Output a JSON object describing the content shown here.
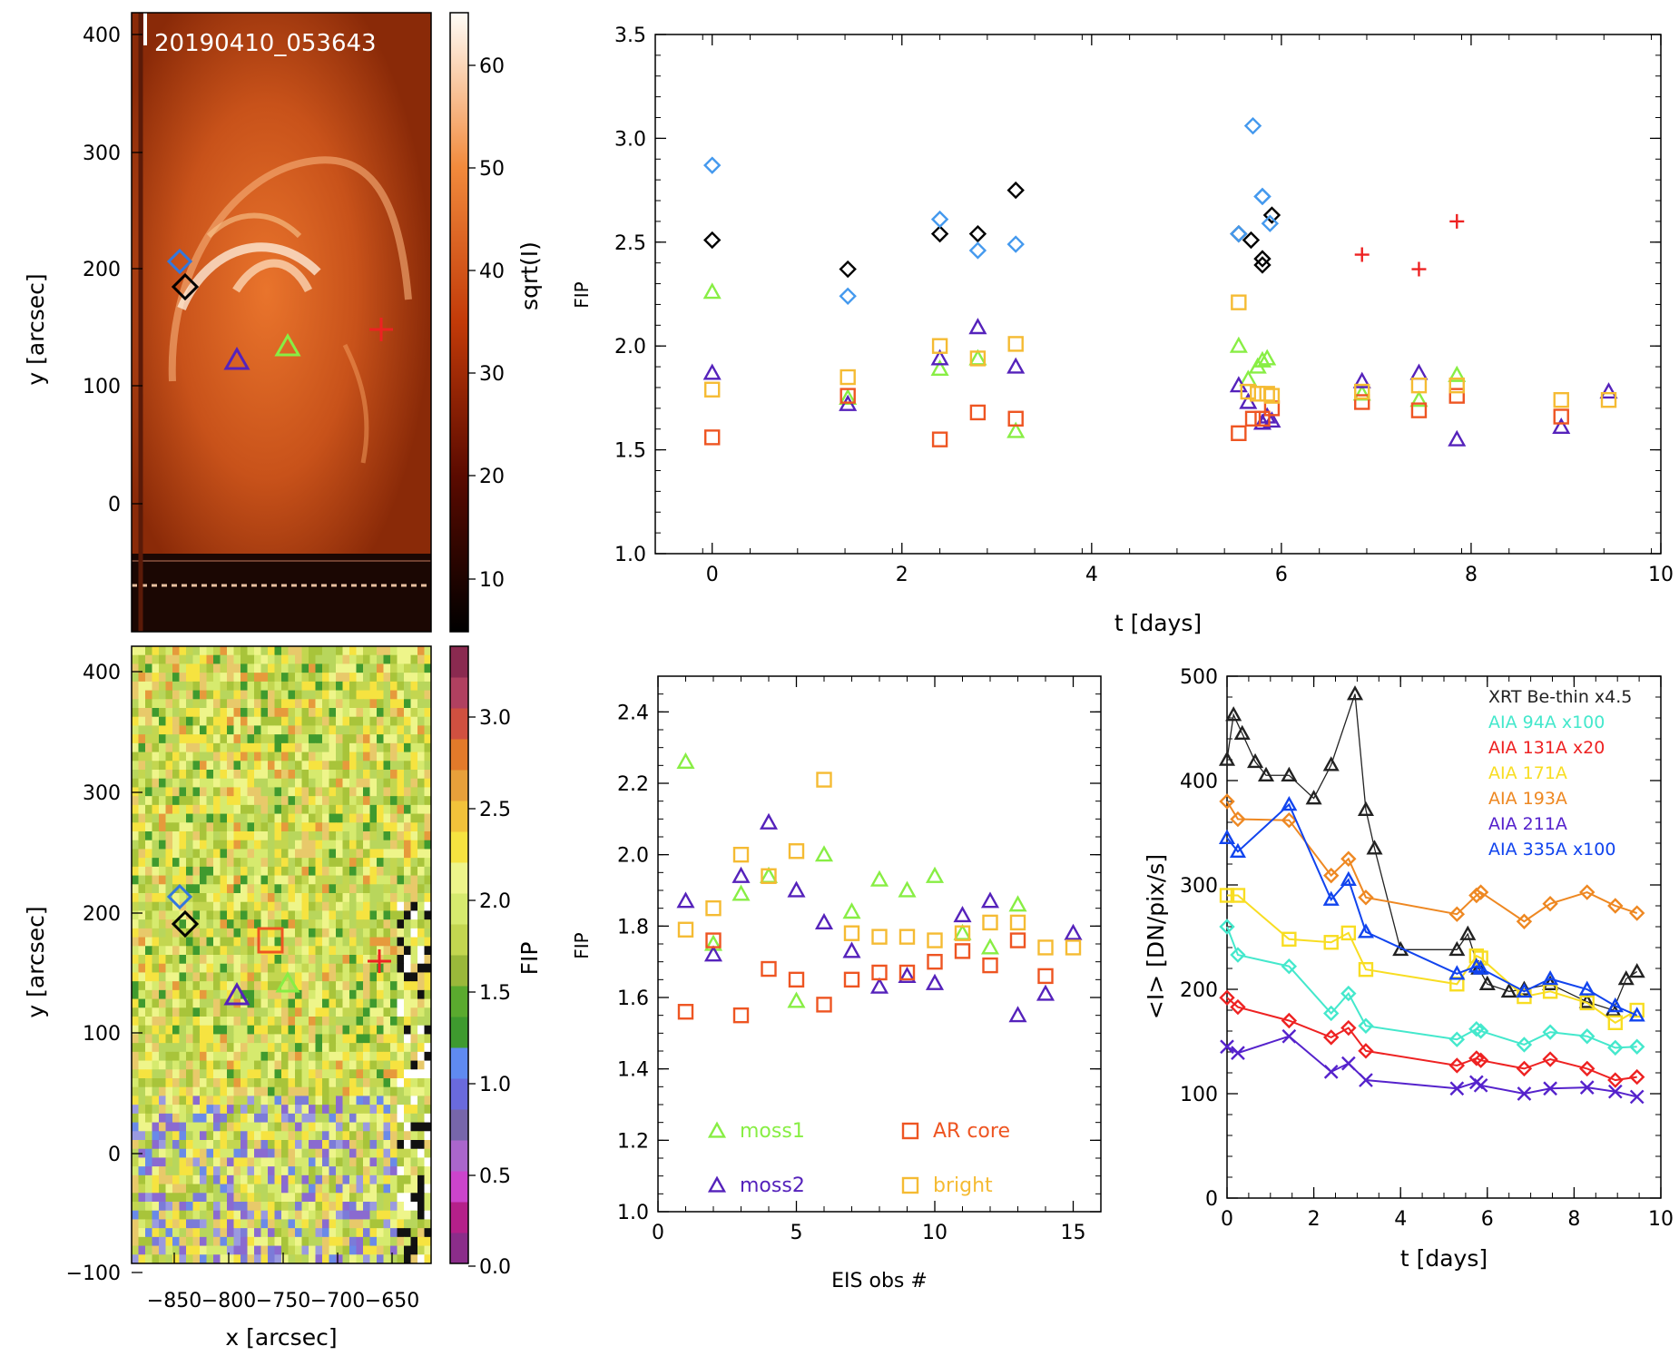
{
  "colors": {
    "moss1": "#88ee44",
    "moss2": "#5522bb",
    "arcore": "#ee5522",
    "bright": "#f5bb33",
    "black": "#000000",
    "lightblue": "#4499ee",
    "red": "#ee2222",
    "xrt": "#222222",
    "aia94": "#44e8cc",
    "aia131": "#ee2222",
    "aia171": "#f8dd22",
    "aia193": "#ee8822",
    "aia211": "#5522cc",
    "aia335": "#1144ee"
  },
  "image_panel": {
    "title": "20190410_053643",
    "ylabel": "y [arcsec]",
    "yticks": [
      "400",
      "300",
      "200",
      "100",
      "0"
    ],
    "colorbar_label": "sqrt(I)",
    "colorbar_ticks": [
      "60",
      "50",
      "40",
      "30",
      "20",
      "10"
    ]
  },
  "fip_panel": {
    "ylabel": "y [arcsec]",
    "xlabel": "x [arcsec]",
    "yticks": [
      "400",
      "300",
      "200",
      "100",
      "0",
      "−100"
    ],
    "xticks": [
      "−850",
      "−800",
      "−750",
      "−700",
      "−650"
    ],
    "colorbar_label": "FIP",
    "colorbar_ticks": [
      "3.0",
      "2.5",
      "2.0",
      "1.5",
      "1.0",
      "0.5",
      "0.0"
    ]
  },
  "chart_data": [
    {
      "type": "scatter",
      "title": "",
      "xlabel": "t [days]",
      "ylabel": "FIP",
      "xlim": [
        -0.6,
        10
      ],
      "ylim": [
        1.0,
        3.5
      ],
      "xticks": [
        "0",
        "2",
        "4",
        "6",
        "8",
        "10"
      ],
      "yticks": [
        "1.0",
        "1.5",
        "2.0",
        "2.5",
        "3.0",
        "3.5"
      ],
      "series": [
        {
          "name": "black diamonds",
          "marker": "diamond",
          "color": "black",
          "x": [
            0.0,
            1.43,
            2.4,
            2.8,
            3.2,
            5.55,
            5.68,
            5.8,
            5.8,
            5.9
          ],
          "y": [
            2.51,
            2.37,
            2.54,
            2.54,
            2.75,
            2.54,
            2.51,
            2.42,
            2.39,
            2.63
          ]
        },
        {
          "name": "light blue diamonds",
          "marker": "diamond",
          "color": "lightblue",
          "x": [
            0.0,
            1.43,
            2.4,
            2.8,
            3.2,
            5.55,
            5.7,
            5.8,
            5.8,
            5.88
          ],
          "y": [
            2.87,
            2.24,
            2.61,
            2.46,
            2.49,
            2.54,
            3.06,
            2.72,
            2.72,
            2.59
          ]
        },
        {
          "name": "red crosses",
          "marker": "plus",
          "color": "red",
          "x": [
            6.85,
            7.45,
            7.85
          ],
          "y": [
            2.44,
            2.37,
            2.6
          ]
        },
        {
          "name": "moss1",
          "marker": "triangle",
          "color": "moss1",
          "x": [
            0.0,
            1.43,
            2.4,
            2.8,
            3.2,
            5.55,
            5.65,
            5.75,
            5.8,
            5.85,
            6.85,
            7.45,
            7.85
          ],
          "y": [
            2.26,
            1.75,
            1.89,
            1.94,
            1.59,
            2.0,
            1.84,
            1.9,
            1.93,
            1.94,
            1.77,
            1.74,
            1.86
          ]
        },
        {
          "name": "moss2",
          "marker": "triangle",
          "color": "moss2",
          "x": [
            0.0,
            1.43,
            2.4,
            2.8,
            3.2,
            5.55,
            5.65,
            5.8,
            5.85,
            5.9,
            6.85,
            7.45,
            7.85,
            8.95,
            9.45
          ],
          "y": [
            1.87,
            1.72,
            1.94,
            2.09,
            1.9,
            1.81,
            1.73,
            1.63,
            1.66,
            1.64,
            1.83,
            1.87,
            1.55,
            1.61,
            1.78
          ]
        },
        {
          "name": "AR core",
          "marker": "square",
          "color": "arcore",
          "x": [
            0.0,
            1.43,
            2.4,
            2.8,
            3.2,
            5.55,
            5.7,
            5.8,
            5.9,
            6.85,
            7.45,
            7.85,
            8.95
          ],
          "y": [
            1.56,
            1.76,
            1.55,
            1.68,
            1.65,
            1.58,
            1.65,
            1.65,
            1.7,
            1.73,
            1.69,
            1.76,
            1.66
          ]
        },
        {
          "name": "bright",
          "marker": "square",
          "color": "bright",
          "x": [
            0.0,
            1.43,
            2.4,
            2.8,
            3.2,
            5.55,
            5.65,
            5.75,
            5.85,
            5.9,
            6.85,
            7.45,
            7.85,
            8.95,
            9.45
          ],
          "y": [
            1.79,
            1.85,
            2.0,
            1.94,
            2.01,
            2.21,
            1.78,
            1.77,
            1.77,
            1.76,
            1.78,
            1.81,
            1.81,
            1.74,
            1.74
          ]
        }
      ]
    },
    {
      "type": "scatter",
      "title": "",
      "xlabel": "EIS obs #",
      "ylabel": "FIP",
      "xlim": [
        0,
        16
      ],
      "ylim": [
        1.0,
        2.5
      ],
      "xticks": [
        "0",
        "5",
        "10",
        "15"
      ],
      "yticks": [
        "1.0",
        "1.2",
        "1.4",
        "1.6",
        "1.8",
        "2.0",
        "2.2",
        "2.4"
      ],
      "legend": [
        "moss1",
        "AR core",
        "moss2",
        "bright"
      ],
      "series": [
        {
          "name": "moss1",
          "marker": "triangle",
          "color": "moss1",
          "x": [
            1,
            2,
            3,
            4,
            5,
            6,
            7,
            8,
            9,
            10,
            11,
            12,
            13
          ],
          "y": [
            2.26,
            1.75,
            1.89,
            1.94,
            1.59,
            2.0,
            1.84,
            1.93,
            1.9,
            1.94,
            1.78,
            1.74,
            1.86
          ]
        },
        {
          "name": "moss2",
          "marker": "triangle",
          "color": "moss2",
          "x": [
            1,
            2,
            3,
            4,
            5,
            6,
            7,
            8,
            9,
            10,
            11,
            12,
            13,
            14,
            15
          ],
          "y": [
            1.87,
            1.72,
            1.94,
            2.09,
            1.9,
            1.81,
            1.73,
            1.63,
            1.66,
            1.64,
            1.83,
            1.87,
            1.55,
            1.61,
            1.78
          ]
        },
        {
          "name": "AR core",
          "marker": "square",
          "color": "arcore",
          "x": [
            1,
            2,
            3,
            4,
            5,
            6,
            7,
            8,
            9,
            10,
            11,
            12,
            13,
            14
          ],
          "y": [
            1.56,
            1.76,
            1.55,
            1.68,
            1.65,
            1.58,
            1.65,
            1.67,
            1.67,
            1.7,
            1.73,
            1.69,
            1.76,
            1.66
          ]
        },
        {
          "name": "bright",
          "marker": "square",
          "color": "bright",
          "x": [
            1,
            2,
            3,
            4,
            5,
            6,
            7,
            8,
            9,
            10,
            11,
            12,
            13,
            14,
            15
          ],
          "y": [
            1.79,
            1.85,
            2.0,
            1.94,
            2.01,
            2.21,
            1.78,
            1.77,
            1.77,
            1.76,
            1.78,
            1.81,
            1.81,
            1.74,
            1.74
          ]
        }
      ]
    },
    {
      "type": "line",
      "title": "",
      "xlabel": "t [days]",
      "ylabel": "<I> [DN/pix/s]",
      "xlim": [
        0,
        10
      ],
      "ylim": [
        0,
        500
      ],
      "xticks": [
        "0",
        "2",
        "4",
        "6",
        "8",
        "10"
      ],
      "yticks": [
        "0",
        "100",
        "200",
        "300",
        "400",
        "500"
      ],
      "series": [
        {
          "name": "XRT Be-thin x4.5",
          "marker": "triangle",
          "color": "xrt",
          "x": [
            0.0,
            0.15,
            0.35,
            0.65,
            0.9,
            1.43,
            2.0,
            2.4,
            2.95,
            3.2,
            3.4,
            4.0,
            5.3,
            5.55,
            5.8,
            6.0,
            6.5,
            6.85,
            7.45,
            8.3,
            8.9,
            9.2,
            9.45
          ],
          "y": [
            420,
            463,
            445,
            418,
            405,
            405,
            383,
            415,
            483,
            372,
            335,
            238,
            238,
            253,
            220,
            205,
            198,
            200,
            205,
            188,
            180,
            210,
            217
          ]
        },
        {
          "name": "AIA 94A x100",
          "marker": "diamond",
          "color": "aia94",
          "x": [
            0.0,
            0.25,
            1.43,
            2.4,
            2.8,
            3.2,
            5.3,
            5.75,
            5.85,
            6.85,
            7.45,
            8.3,
            8.95,
            9.45
          ],
          "y": [
            260,
            233,
            222,
            177,
            196,
            165,
            152,
            162,
            160,
            147,
            159,
            155,
            144,
            145
          ]
        },
        {
          "name": "AIA 131A x20",
          "marker": "diamond",
          "color": "aia131",
          "x": [
            0.0,
            0.25,
            1.43,
            2.4,
            2.8,
            3.2,
            5.3,
            5.75,
            5.85,
            6.85,
            7.45,
            8.3,
            8.95,
            9.45
          ],
          "y": [
            192,
            183,
            170,
            154,
            163,
            141,
            127,
            134,
            132,
            124,
            133,
            124,
            113,
            116
          ]
        },
        {
          "name": "AIA 171A",
          "marker": "square",
          "color": "aia171",
          "x": [
            0.0,
            0.25,
            1.43,
            2.4,
            2.8,
            3.2,
            5.3,
            5.75,
            5.85,
            6.85,
            7.45,
            8.3,
            8.95,
            9.45
          ],
          "y": [
            290,
            290,
            248,
            245,
            254,
            219,
            205,
            232,
            230,
            193,
            198,
            187,
            168,
            180
          ]
        },
        {
          "name": "AIA 193A",
          "marker": "diamond",
          "color": "aia193",
          "x": [
            0.0,
            0.25,
            1.43,
            2.4,
            2.8,
            3.2,
            5.3,
            5.75,
            5.85,
            6.85,
            7.45,
            8.3,
            8.95,
            9.45
          ],
          "y": [
            380,
            363,
            362,
            309,
            325,
            288,
            272,
            290,
            293,
            265,
            282,
            293,
            280,
            273
          ]
        },
        {
          "name": "AIA 211A",
          "marker": "cross",
          "color": "aia211",
          "x": [
            0.0,
            0.25,
            1.43,
            2.4,
            2.8,
            3.2,
            5.3,
            5.75,
            5.85,
            6.85,
            7.45,
            8.3,
            8.95,
            9.45
          ],
          "y": [
            145,
            139,
            155,
            121,
            129,
            113,
            105,
            111,
            108,
            100,
            105,
            106,
            102,
            97
          ]
        },
        {
          "name": "AIA 335A x100",
          "marker": "triangle",
          "color": "aia335",
          "x": [
            0.0,
            0.25,
            1.43,
            2.4,
            2.8,
            3.2,
            5.3,
            5.75,
            5.85,
            6.85,
            7.45,
            8.3,
            8.95,
            9.45
          ],
          "y": [
            345,
            332,
            377,
            286,
            305,
            255,
            215,
            222,
            220,
            198,
            210,
            200,
            184,
            175
          ]
        }
      ]
    }
  ]
}
